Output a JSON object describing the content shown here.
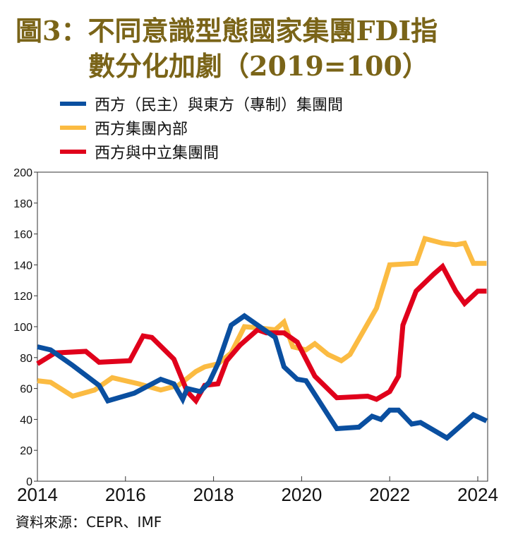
{
  "title": {
    "line1": "圖3：不同意識型態國家集團FDI指",
    "line2": "數分化加劇（2019=100）"
  },
  "source": "資料來源：CEPR、IMF",
  "colors": {
    "title": "#7a6418",
    "blue": "#0a4fa0",
    "yellow": "#fbbb42",
    "red": "#e0001b"
  },
  "chart_data": {
    "type": "line",
    "title": "圖3：不同意識型態國家集團FDI指數分化加劇（2019=100）",
    "xlabel": "",
    "ylabel": "",
    "xlim": [
      2014,
      2024.25
    ],
    "ylim": [
      0,
      200
    ],
    "yticks": [
      0,
      20,
      40,
      60,
      80,
      100,
      120,
      140,
      160,
      180,
      200
    ],
    "xticks": [
      2014,
      2016,
      2018,
      2020,
      2022,
      2024
    ],
    "grid": false,
    "legend_position": "top-left",
    "series": [
      {
        "name": "西方（民主）與東方（專制）集團間",
        "color": "#0a4fa0",
        "points": [
          [
            2014.0,
            87
          ],
          [
            2014.3,
            85
          ],
          [
            2014.8,
            75
          ],
          [
            2015.4,
            62
          ],
          [
            2015.6,
            52
          ],
          [
            2016.2,
            57
          ],
          [
            2016.8,
            66
          ],
          [
            2017.1,
            63
          ],
          [
            2017.3,
            53
          ],
          [
            2017.4,
            60
          ],
          [
            2017.7,
            58
          ],
          [
            2017.9,
            64
          ],
          [
            2018.1,
            76
          ],
          [
            2018.4,
            101
          ],
          [
            2018.7,
            107
          ],
          [
            2019.4,
            93
          ],
          [
            2019.6,
            74
          ],
          [
            2019.9,
            66
          ],
          [
            2020.1,
            65
          ],
          [
            2020.8,
            34
          ],
          [
            2021.3,
            35
          ],
          [
            2021.6,
            42
          ],
          [
            2021.8,
            40
          ],
          [
            2022.0,
            46
          ],
          [
            2022.2,
            46
          ],
          [
            2022.5,
            37
          ],
          [
            2022.7,
            38
          ],
          [
            2023.3,
            28
          ],
          [
            2023.9,
            43
          ],
          [
            2024.2,
            39
          ]
        ]
      },
      {
        "name": "西方集團內部",
        "color": "#fbbb42",
        "points": [
          [
            2014.0,
            65
          ],
          [
            2014.3,
            64
          ],
          [
            2014.8,
            55
          ],
          [
            2015.3,
            59
          ],
          [
            2015.7,
            67
          ],
          [
            2016.3,
            63
          ],
          [
            2016.8,
            59
          ],
          [
            2017.2,
            62
          ],
          [
            2017.6,
            71
          ],
          [
            2017.8,
            74
          ],
          [
            2018.1,
            76
          ],
          [
            2018.4,
            83
          ],
          [
            2018.7,
            100
          ],
          [
            2019.1,
            99
          ],
          [
            2019.4,
            98
          ],
          [
            2019.6,
            103
          ],
          [
            2019.8,
            87
          ],
          [
            2020.1,
            85
          ],
          [
            2020.3,
            89
          ],
          [
            2020.6,
            82
          ],
          [
            2020.9,
            78
          ],
          [
            2021.1,
            82
          ],
          [
            2021.7,
            112
          ],
          [
            2022.0,
            140
          ],
          [
            2022.6,
            141
          ],
          [
            2022.8,
            157
          ],
          [
            2023.2,
            154
          ],
          [
            2023.5,
            153
          ],
          [
            2023.7,
            154
          ],
          [
            2023.9,
            141
          ],
          [
            2024.2,
            141
          ]
        ]
      },
      {
        "name": "西方與中立集團間",
        "color": "#e0001b",
        "points": [
          [
            2014.0,
            76
          ],
          [
            2014.4,
            83
          ],
          [
            2015.1,
            84
          ],
          [
            2015.4,
            77
          ],
          [
            2016.1,
            78
          ],
          [
            2016.4,
            94
          ],
          [
            2016.6,
            93
          ],
          [
            2017.1,
            79
          ],
          [
            2017.4,
            58
          ],
          [
            2017.6,
            52
          ],
          [
            2017.8,
            62
          ],
          [
            2018.1,
            63
          ],
          [
            2018.3,
            78
          ],
          [
            2018.6,
            88
          ],
          [
            2019.0,
            98
          ],
          [
            2019.2,
            96
          ],
          [
            2019.6,
            96
          ],
          [
            2019.9,
            90
          ],
          [
            2020.3,
            68
          ],
          [
            2020.8,
            54
          ],
          [
            2021.5,
            55
          ],
          [
            2021.7,
            53
          ],
          [
            2022.0,
            58
          ],
          [
            2022.2,
            68
          ],
          [
            2022.3,
            101
          ],
          [
            2022.6,
            123
          ],
          [
            2023.0,
            134
          ],
          [
            2023.2,
            139
          ],
          [
            2023.5,
            123
          ],
          [
            2023.7,
            115
          ],
          [
            2024.0,
            123
          ],
          [
            2024.2,
            123
          ]
        ]
      }
    ]
  }
}
